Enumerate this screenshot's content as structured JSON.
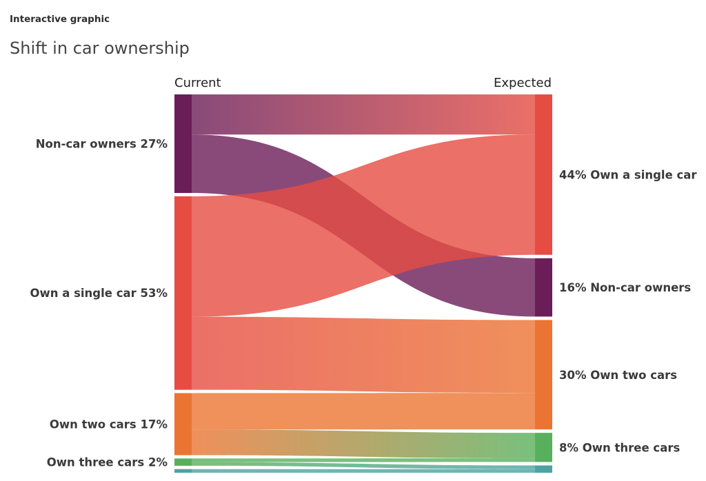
{
  "kicker": "Interactive graphic",
  "title": "Shift in car ownership",
  "chart_data": {
    "type": "sankey",
    "left_header": "Current",
    "right_header": "Expected",
    "left_nodes": [
      {
        "id": "none",
        "label": "Non-car owners 27%",
        "value": 27,
        "color": "#6b1d58"
      },
      {
        "id": "one",
        "label": "Own a single car 53%",
        "value": 53,
        "color": "#e64c42"
      },
      {
        "id": "two",
        "label": "Own two cars 17%",
        "value": 17,
        "color": "#ec7432"
      },
      {
        "id": "three",
        "label": "Own three cars 2%",
        "value": 2,
        "color": "#58b05c"
      },
      {
        "id": "other",
        "label": "",
        "value": 1,
        "color": "#4ba3a3"
      }
    ],
    "right_nodes": [
      {
        "id": "one",
        "label": "44% Own a single car",
        "value": 44,
        "color": "#e64c42"
      },
      {
        "id": "none",
        "label": "16% Non-car owners",
        "value": 16,
        "color": "#6b1d58"
      },
      {
        "id": "two",
        "label": "30% Own two cars",
        "value": 30,
        "color": "#ec7432"
      },
      {
        "id": "three",
        "label": "8% Own three cars",
        "value": 8,
        "color": "#58b05c"
      },
      {
        "id": "other",
        "label": "",
        "value": 2,
        "color": "#4ba3a3"
      }
    ],
    "flows": [
      {
        "from": "none",
        "to": "one",
        "value": 11
      },
      {
        "from": "none",
        "to": "none",
        "value": 16
      },
      {
        "from": "one",
        "to": "one",
        "value": 33
      },
      {
        "from": "one",
        "to": "two",
        "value": 20
      },
      {
        "from": "two",
        "to": "two",
        "value": 10
      },
      {
        "from": "two",
        "to": "three",
        "value": 7
      },
      {
        "from": "three",
        "to": "three",
        "value": 1
      },
      {
        "from": "three",
        "to": "other",
        "value": 1
      },
      {
        "from": "other",
        "to": "other",
        "value": 1
      }
    ]
  }
}
